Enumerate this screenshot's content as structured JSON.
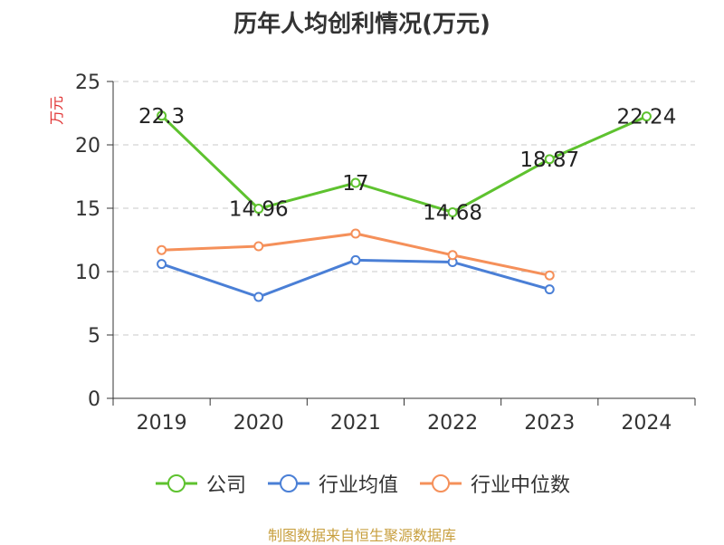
{
  "chart_data": {
    "type": "line",
    "title": "历年人均创利情况(万元)",
    "ylabel": "万元",
    "xlabel": "",
    "categories": [
      "2019",
      "2020",
      "2021",
      "2022",
      "2023",
      "2024"
    ],
    "ylim": [
      0,
      25
    ],
    "yticks": [
      "0",
      "5",
      "10",
      "15",
      "20",
      "25"
    ],
    "grid": true,
    "legend_position": "bottom",
    "series": [
      {
        "name": "公司",
        "color": "#5ec22f",
        "values": [
          22.3,
          14.96,
          17,
          14.68,
          18.87,
          22.24
        ],
        "labels": [
          "22.3",
          "14.96",
          "17",
          "14.68",
          "18.87",
          "22.24"
        ]
      },
      {
        "name": "行业均值",
        "color": "#4a7fd6",
        "values": [
          10.6,
          8.0,
          10.9,
          10.75,
          8.6,
          null
        ]
      },
      {
        "name": "行业中位数",
        "color": "#f5905a",
        "values": [
          11.7,
          12.0,
          13.0,
          11.3,
          9.7,
          null
        ]
      }
    ]
  },
  "footer": {
    "source": "制图数据来自恒生聚源数据库"
  }
}
